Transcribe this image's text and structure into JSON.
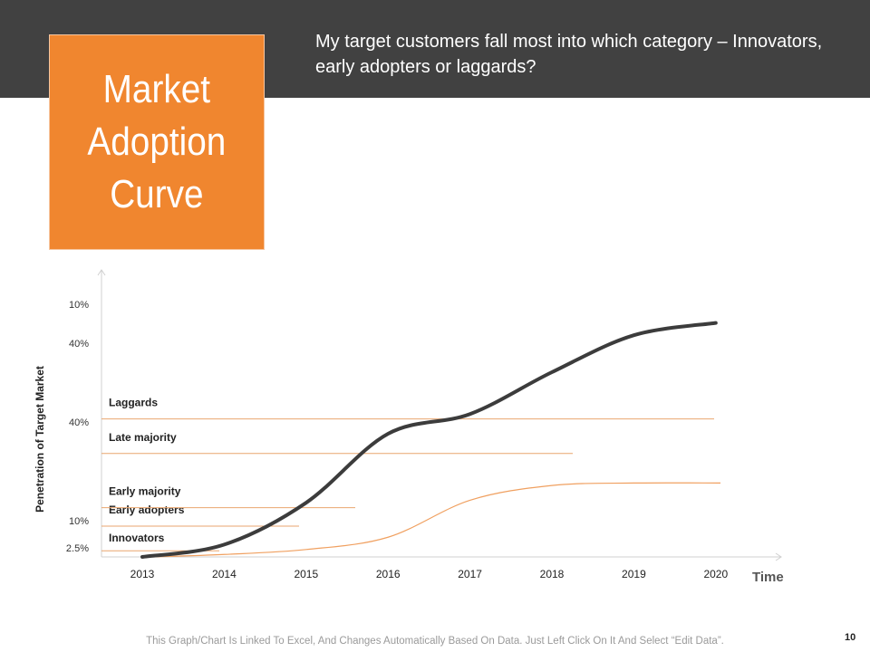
{
  "slide": {
    "title": "Market Adoption Curve",
    "question": "My target customers fall most into which category – Innovators, early adopters or laggards?",
    "footer": "This Graph/Chart Is Linked To Excel, And Changes Automatically Based On Data. Just Left Click On It And Select “Edit Data”.",
    "page_number": "10"
  },
  "colors": {
    "header_band": "#414141",
    "accent": "#f0862f",
    "curve_dark": "#3c3c3c",
    "curve_orange": "#f0a060",
    "category_line": "#e9a66f",
    "axis": "#d0d0d0"
  },
  "chart_data": {
    "type": "line",
    "xlabel": "Time",
    "ylabel": "Penetration of Target Market",
    "categories": [
      "2013",
      "2014",
      "2015",
      "2016",
      "2017",
      "2018",
      "2019",
      "2020"
    ],
    "ylim": [
      0,
      100
    ],
    "grid": false,
    "legend": "none",
    "bands": [
      {
        "label": "Innovators",
        "pct_label": "2.5%",
        "upper": 2.5
      },
      {
        "label": "Early adopters",
        "pct_label": "10%",
        "upper": 12.5
      },
      {
        "label": "Early majority",
        "pct_label": "40%",
        "upper": 20
      },
      {
        "label": "Late majority",
        "pct_label": "40%",
        "upper": 42
      },
      {
        "label": "Laggards",
        "pct_label": "10%",
        "upper": 56
      }
    ],
    "series": [
      {
        "values": [
          0,
          5,
          22,
          50,
          58,
          75,
          90,
          95
        ]
      },
      {
        "values": [
          0,
          1,
          3,
          8,
          23,
          29,
          30,
          30
        ]
      }
    ]
  }
}
